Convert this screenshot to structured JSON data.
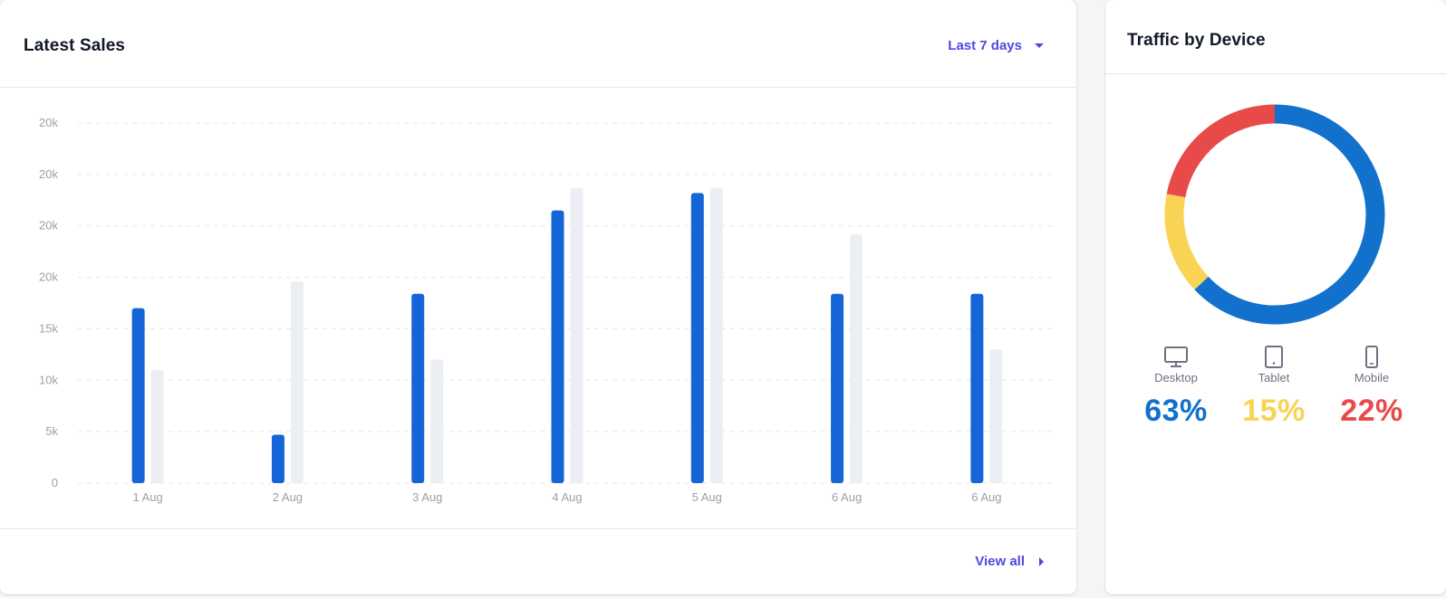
{
  "sales": {
    "title": "Latest Sales",
    "range_label": "Last 7 days",
    "view_all_label": "View all"
  },
  "traffic": {
    "title": "Traffic by Device",
    "devices": [
      {
        "label": "Desktop",
        "value": "63%",
        "icon": "desktop-icon",
        "color": "#1271cc"
      },
      {
        "label": "Tablet",
        "value": "15%",
        "icon": "tablet-icon",
        "color": "#f8d354"
      },
      {
        "label": "Mobile",
        "value": "22%",
        "icon": "mobile-icon",
        "color": "#e84a4a"
      }
    ]
  },
  "chart_data": [
    {
      "type": "bar",
      "categories": [
        "1 Aug",
        "2 Aug",
        "3 Aug",
        "4 Aug",
        "5 Aug",
        "6 Aug",
        "6 Aug"
      ],
      "y_tick_labels": [
        "0",
        "5k",
        "10k",
        "15k",
        "20k",
        "20k",
        "20k",
        "20k"
      ],
      "ylim": [
        0,
        35
      ],
      "series": [
        {
          "values": [
            17,
            4.7,
            18.4,
            26.5,
            28.2,
            18.4,
            18.4
          ],
          "color": "#1565d8"
        },
        {
          "values": [
            11,
            19.6,
            12,
            28.7,
            28.7,
            24.2,
            13
          ],
          "color": "#ebeef2"
        }
      ],
      "grid": true,
      "legend": "none"
    },
    {
      "type": "pie",
      "categories": [
        "Desktop",
        "Tablet",
        "Mobile"
      ],
      "values": [
        63,
        15,
        22
      ],
      "colors": [
        "#1271cc",
        "#f8d354",
        "#e84a4a"
      ]
    }
  ]
}
